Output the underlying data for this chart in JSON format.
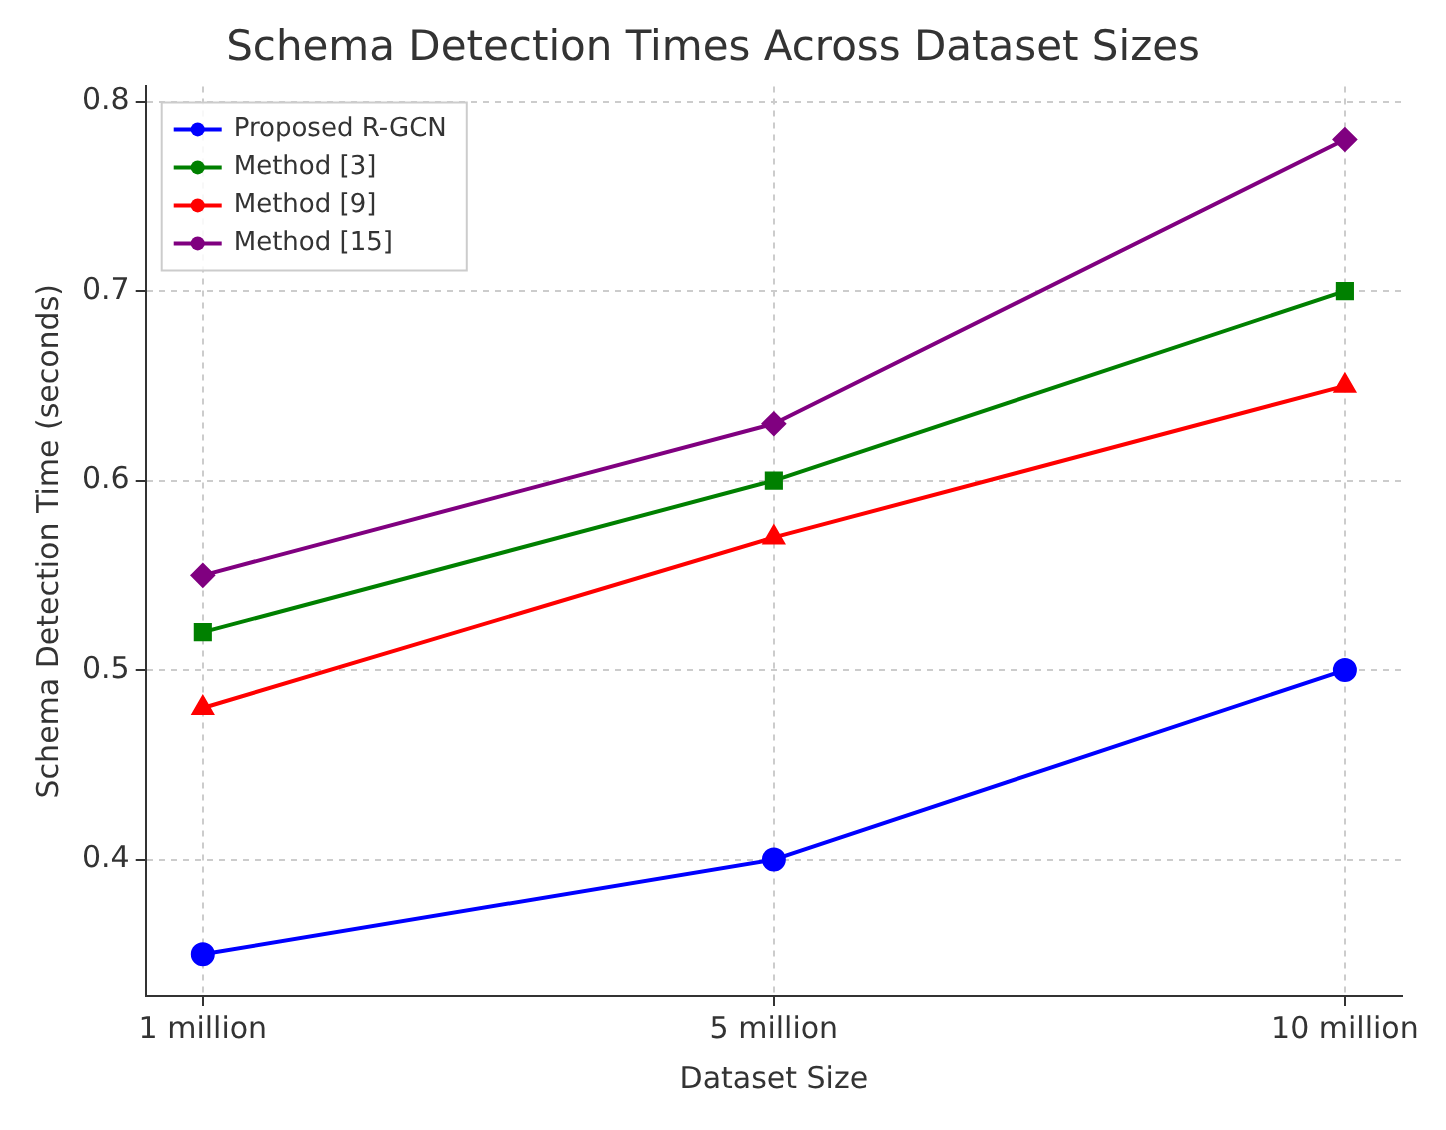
{
  "chart_data": {
    "type": "line",
    "title": "Schema Detection Times Across Dataset Sizes",
    "xlabel": "Dataset Size",
    "ylabel": "Schema Detection Time (seconds)",
    "categories": [
      "1 million",
      "5 million",
      "10 million"
    ],
    "series": [
      {
        "name": "Proposed R-GCN",
        "color": "#0000ff",
        "marker": "circle",
        "values": [
          0.35,
          0.4,
          0.5
        ]
      },
      {
        "name": "Method [3]",
        "color": "#008000",
        "marker": "square",
        "values": [
          0.52,
          0.6,
          0.7
        ]
      },
      {
        "name": "Method [9]",
        "color": "#ff0000",
        "marker": "triangle",
        "values": [
          0.48,
          0.57,
          0.65
        ]
      },
      {
        "name": "Method [15]",
        "color": "#800080",
        "marker": "diamond",
        "values": [
          0.55,
          0.63,
          0.78
        ]
      }
    ],
    "ylim": [
      0.328,
      0.808
    ],
    "yticks": [
      {
        "value": 0.4,
        "label": "0.4"
      },
      {
        "value": 0.5,
        "label": "0.5"
      },
      {
        "value": 0.6,
        "label": "0.6"
      },
      {
        "value": 0.7,
        "label": "0.7"
      },
      {
        "value": 0.8,
        "label": "0.8"
      }
    ],
    "grid": true,
    "legend": "top left",
    "line_style": "solid"
  }
}
